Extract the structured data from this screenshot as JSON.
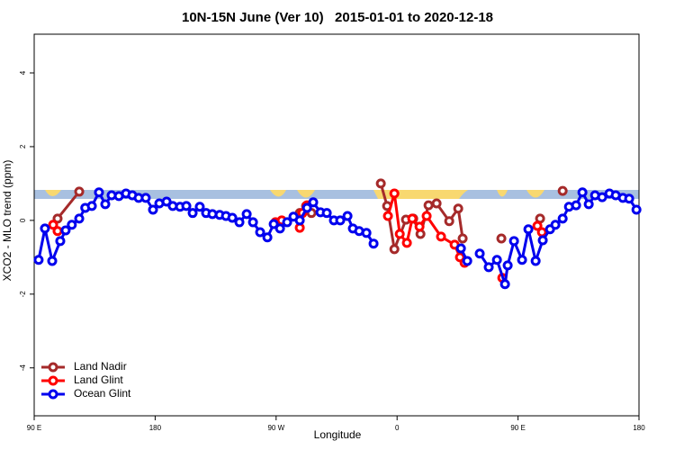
{
  "chart_data": {
    "type": "line",
    "title": "10N-15N June (Ver 10)   2015-01-01 to 2020-12-18",
    "xlabel": "Longitude",
    "ylabel": "XCO2 - MLO trend (ppm)",
    "xlim": [
      90,
      540
    ],
    "ylim": [
      -5.3,
      5.05
    ],
    "xticks": [
      {
        "value": 90,
        "label": "90 E"
      },
      180,
      {
        "value": 270,
        "label": "90 W"
      },
      {
        "value": 360,
        "label": "0"
      },
      {
        "value": 450,
        "label": "90 E"
      },
      {
        "value": 540,
        "label": "180"
      }
    ],
    "yticks": [
      -4,
      -2,
      0,
      2,
      4
    ],
    "legend": "bottomleft",
    "series": [
      {
        "name": "Land Nadir",
        "color": "#a52a2a",
        "x": [
          107.4,
          123.5,
          null,
          287.6,
          292.3,
          296.3,
          null,
          347.9,
          352.6,
          358,
          366.6,
          372,
          377.4,
          383.4,
          389.4,
          398.8,
          405.5,
          408.8,
          null,
          437.6,
          null,
          466.4,
          null,
          483.2
        ],
        "values": [
          0.05,
          0.78,
          null,
          0.2,
          0.39,
          0.2,
          null,
          1.0,
          0.39,
          -0.78,
          0.02,
          0.05,
          -0.37,
          0.41,
          0.46,
          -0.02,
          0.32,
          -0.49,
          null,
          -0.49,
          null,
          0.05,
          null,
          0.8
        ]
      },
      {
        "name": "Land Glint",
        "color": "#ff0000",
        "x": [
          104.1,
          107.4,
          null,
          269.5,
          274.2,
          null,
          287.6,
          289.6,
          293,
          null,
          353.2,
          358,
          362,
          367.3,
          371.3,
          376.7,
          382,
          392.7,
          402.8,
          406.8,
          410.2,
          null,
          438.3,
          null,
          464.4,
          467.8
        ],
        "values": [
          -0.12,
          -0.29,
          null,
          -0.05,
          0,
          null,
          -0.2,
          0.2,
          0.41,
          null,
          0.12,
          0.73,
          -0.37,
          -0.61,
          0.05,
          -0.17,
          0.12,
          -0.44,
          -0.66,
          -1.0,
          -1.15,
          null,
          -1.56,
          null,
          -0.15,
          -0.32
        ]
      },
      {
        "name": "Ocean Glint",
        "color": "#0000ee",
        "x": [
          93.3,
          98,
          103.4,
          109.4,
          113.4,
          118,
          123.5,
          128,
          132.9,
          138.2,
          142.9,
          147.6,
          153,
          158.3,
          163,
          167.7,
          173,
          178.4,
          183.1,
          188.5,
          193.1,
          198.5,
          203.2,
          207.9,
          213.2,
          217.9,
          222.6,
          228,
          232.7,
          237.4,
          242.7,
          248.1,
          252.8,
          258.1,
          263.5,
          268.2,
          272.9,
          278.2,
          282.9,
          287.6,
          293,
          297.6,
          303,
          307.7,
          313,
          317.7,
          323.1,
          327.1,
          331.8,
          337.2,
          342.5,
          null,
          407.5,
          412.2,
          null,
          421.5,
          428.2,
          434.3,
          440.3,
          442.3,
          447,
          453,
          457.7,
          463.1,
          468.4,
          473.8,
          477.8,
          483.2,
          487.9,
          493.2,
          497.9,
          502.6,
          507.3,
          512.6,
          518,
          522.7,
          528,
          532.7,
          538.1
        ],
        "values": [
          -1.07,
          -0.22,
          -1.1,
          -0.56,
          -0.27,
          -0.12,
          0.05,
          0.34,
          0.39,
          0.76,
          0.44,
          0.68,
          0.66,
          0.73,
          0.68,
          0.61,
          0.61,
          0.29,
          0.46,
          0.51,
          0.39,
          0.37,
          0.39,
          0.2,
          0.37,
          0.2,
          0.17,
          0.15,
          0.12,
          0.07,
          -0.05,
          0.17,
          -0.05,
          -0.32,
          -0.46,
          -0.1,
          -0.22,
          -0.05,
          0.1,
          0,
          0.34,
          0.49,
          0.22,
          0.2,
          0,
          0,
          0.12,
          -0.22,
          -0.29,
          -0.34,
          -0.63,
          null,
          -0.76,
          -1.1,
          null,
          -0.9,
          -1.27,
          -1.07,
          -1.73,
          -1.22,
          -0.56,
          -1.07,
          -0.24,
          -1.1,
          -0.54,
          -0.24,
          -0.12,
          0.05,
          0.37,
          0.41,
          0.76,
          0.44,
          0.68,
          0.63,
          0.73,
          0.68,
          0.61,
          0.59,
          0.29
        ]
      }
    ]
  }
}
